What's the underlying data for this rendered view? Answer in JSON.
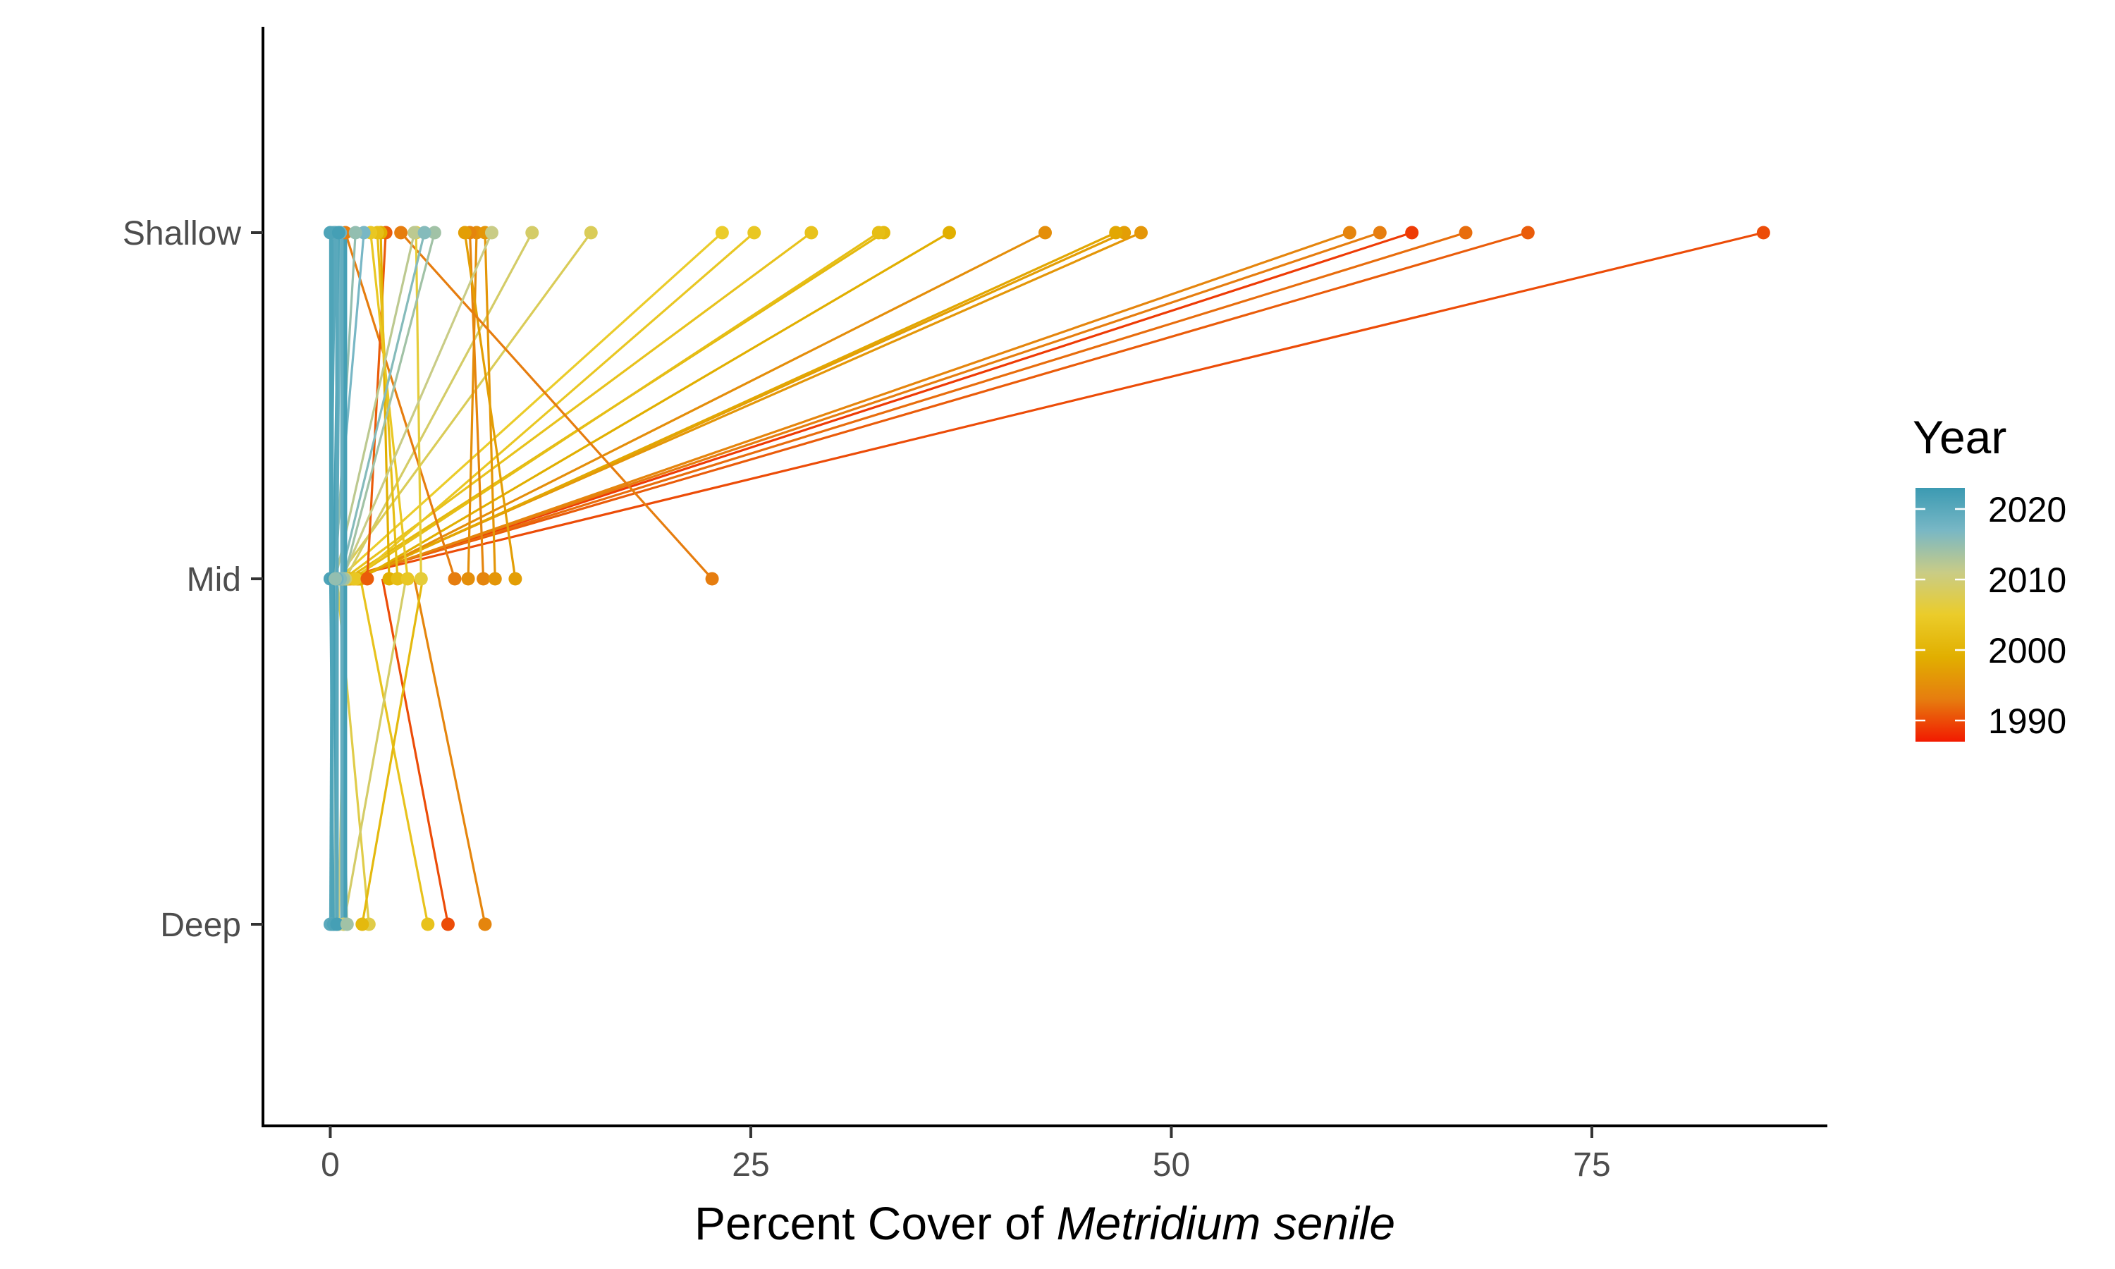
{
  "chart_data": {
    "type": "scatter",
    "subtype": "paired slope lines between depth zones, colored by year",
    "title": "",
    "xlabel_prefix": "Percent Cover of ",
    "xlabel_italic": "Metridium senile",
    "ylabel": "",
    "x_ticks": [
      0,
      25,
      50,
      75
    ],
    "xlim": [
      -4,
      89
    ],
    "y_categories": [
      "Shallow",
      "Mid",
      "Deep"
    ],
    "grid": false,
    "legend": {
      "title": "Year",
      "position": "right",
      "labels": [
        2020,
        2010,
        2000,
        1990
      ],
      "range": [
        1987,
        2023
      ],
      "colors": [
        "#f21a00",
        "#e67d0f",
        "#e1af00",
        "#ebcc2a",
        "#c9cc86",
        "#78b7c5",
        "#3b9ab2"
      ]
    },
    "pairs": [
      {
        "year": 1990,
        "x_shallow": 85.2,
        "x_mid": 0.6
      },
      {
        "year": 1991,
        "x_shallow": 71.2,
        "x_mid": 0.7
      },
      {
        "year": 1992,
        "x_shallow": 67.5,
        "x_mid": 0.9
      },
      {
        "year": 1989,
        "x_shallow": 64.3,
        "x_mid": 1.0
      },
      {
        "year": 1993,
        "x_shallow": 62.4,
        "x_mid": 1.1
      },
      {
        "year": 1994,
        "x_shallow": 60.6,
        "x_mid": 1.2
      },
      {
        "year": 1996,
        "x_shallow": 48.2,
        "x_mid": 1.4
      },
      {
        "year": 1997,
        "x_shallow": 47.2,
        "x_mid": 1.5
      },
      {
        "year": 1998,
        "x_shallow": 46.7,
        "x_mid": 1.6
      },
      {
        "year": 1995,
        "x_shallow": 42.5,
        "x_mid": 1.7
      },
      {
        "year": 1999,
        "x_shallow": 36.8,
        "x_mid": 1.8
      },
      {
        "year": 2001,
        "x_shallow": 32.9,
        "x_mid": 1.0
      },
      {
        "year": 2002,
        "x_shallow": 32.6,
        "x_mid": 1.3
      },
      {
        "year": 2003,
        "x_shallow": 28.6,
        "x_mid": 0.8
      },
      {
        "year": 2004,
        "x_shallow": 25.2,
        "x_mid": 1.5
      },
      {
        "year": 2005,
        "x_shallow": 23.3,
        "x_mid": 0.5
      },
      {
        "year": 2008,
        "x_shallow": 15.5,
        "x_mid": 0.4
      },
      {
        "year": 2009,
        "x_shallow": 12.0,
        "x_mid": 0.9
      },
      {
        "year": 1993,
        "x_shallow": 0.9,
        "x_mid": 7.4
      },
      {
        "year": 1995,
        "x_shallow": 8.7,
        "x_mid": 8.2
      },
      {
        "year": 1994,
        "x_shallow": 8.3,
        "x_mid": 9.1
      },
      {
        "year": 1996,
        "x_shallow": 9.2,
        "x_mid": 9.8
      },
      {
        "year": 1997,
        "x_shallow": 8.0,
        "x_mid": 11.0
      },
      {
        "year": 1993,
        "x_shallow": 4.2,
        "x_mid": 22.7
      },
      {
        "year": 1991,
        "x_shallow": 3.3,
        "x_mid": 2.2
      },
      {
        "year": 1999,
        "x_shallow": 3.0,
        "x_mid": 3.5
      },
      {
        "year": 2002,
        "x_shallow": 2.8,
        "x_mid": 4.0
      },
      {
        "year": 2004,
        "x_shallow": 2.4,
        "x_mid": 4.6
      },
      {
        "year": 2006,
        "x_shallow": 5.1,
        "x_mid": 5.4
      },
      {
        "year": 2011,
        "x_shallow": 9.6,
        "x_mid": 0.7
      },
      {
        "year": 2012,
        "x_shallow": 5.0,
        "x_mid": 0.3
      },
      {
        "year": 2014,
        "x_shallow": 6.2,
        "x_mid": 0.8
      },
      {
        "year": 2016,
        "x_shallow": 5.6,
        "x_mid": 0.6
      },
      {
        "year": 2017,
        "x_shallow": 2.0,
        "x_mid": 0.2
      },
      {
        "year": 2018,
        "x_shallow": 0.6,
        "x_mid": 0.4
      },
      {
        "year": 2019,
        "x_shallow": 0.2,
        "x_mid": 0.1
      },
      {
        "year": 2020,
        "x_shallow": 0.3,
        "x_mid": 0.0
      },
      {
        "year": 2021,
        "x_shallow": 0.0,
        "x_mid": 0.0
      },
      {
        "year": 2022,
        "x_shallow": 0.5,
        "x_mid": 0.2
      },
      {
        "year": 2015,
        "x_shallow": 1.5,
        "x_mid": 0.3
      }
    ],
    "mid_deep_pairs": [
      {
        "year": 1994,
        "x_mid": 5.0,
        "x_deep": 9.2
      },
      {
        "year": 1990,
        "x_mid": 3.1,
        "x_deep": 7.0
      },
      {
        "year": 2003,
        "x_mid": 1.8,
        "x_deep": 5.8
      },
      {
        "year": 2007,
        "x_mid": 0.4,
        "x_deep": 2.3
      },
      {
        "year": 2001,
        "x_mid": 5.5,
        "x_deep": 1.9
      },
      {
        "year": 2009,
        "x_mid": 4.5,
        "x_deep": 0.8
      },
      {
        "year": 2011,
        "x_mid": 0.9,
        "x_deep": 0.5
      },
      {
        "year": 2016,
        "x_mid": 0.3,
        "x_deep": 0.3
      },
      {
        "year": 2018,
        "x_mid": 0.2,
        "x_deep": 0.1
      },
      {
        "year": 2020,
        "x_mid": 0.1,
        "x_deep": 0.0
      },
      {
        "year": 2021,
        "x_mid": 0.0,
        "x_deep": 0.2
      },
      {
        "year": 2022,
        "x_mid": 0.2,
        "x_deep": 0.4
      },
      {
        "year": 2014,
        "x_mid": 0.6,
        "x_deep": 1.0
      }
    ]
  }
}
